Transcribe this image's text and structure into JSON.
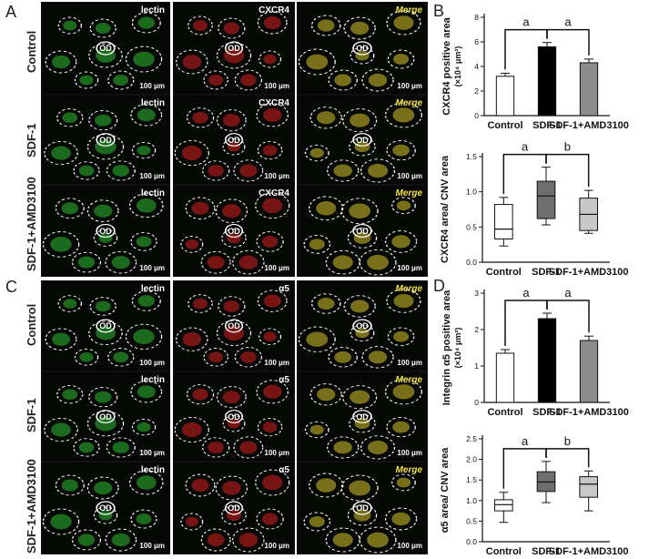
{
  "panels": {
    "A": "A",
    "B": "B",
    "C": "C",
    "D": "D"
  },
  "top_block": {
    "rows": [
      "Control",
      "SDF-1",
      "SDF-1+AMD3100"
    ],
    "channels": [
      "lectin",
      "CXCR4",
      "Merge"
    ],
    "scale_bar": "100 μm",
    "od_label": "OD"
  },
  "bottom_block": {
    "rows": [
      "Control",
      "SDF-1",
      "SDF-1+AMD3100"
    ],
    "channels": [
      "lectin",
      "α5",
      "Merge"
    ],
    "scale_bar": "100 μm",
    "od_label": "OD"
  },
  "colors": {
    "green": "#2dbb32",
    "red": "#d42121",
    "yellow": "#d6c52a",
    "bar_control": "#ffffff",
    "bar_sdf": "#000000",
    "bar_amd": "#8c8c8c",
    "box_mid": "#6e6e6e",
    "box_light": "#c8c8c8"
  },
  "chart_data": [
    {
      "id": "B1",
      "type": "bar",
      "categories": [
        "Control",
        "SDF-1",
        "SDF-1+AMD3100"
      ],
      "values": [
        3.2,
        5.6,
        4.3
      ],
      "errors": [
        0.25,
        0.35,
        0.3
      ],
      "ylabel": "CXCR4 positive area",
      "yunit": "(×10⁴ μm²)",
      "ylim": [
        0,
        8
      ],
      "yticks": [
        "0",
        "2",
        "4",
        "6",
        "8"
      ],
      "annotations": [
        "a",
        "a"
      ]
    },
    {
      "id": "B2",
      "type": "box",
      "categories": [
        "Control",
        "SDF-1",
        "SDF-1+AMD3100"
      ],
      "boxes": [
        {
          "min": 0.23,
          "q1": 0.33,
          "median": 0.47,
          "q3": 0.82,
          "max": 0.92
        },
        {
          "min": 0.53,
          "q1": 0.62,
          "median": 0.94,
          "q3": 1.15,
          "max": 1.35
        },
        {
          "min": 0.41,
          "q1": 0.45,
          "median": 0.68,
          "q3": 0.91,
          "max": 1.02
        }
      ],
      "ylabel": "CXCR4 area/ CNV area",
      "ylim": [
        0,
        1.5
      ],
      "yticks": [
        "0.0",
        "0.5",
        "1.0",
        "1.5"
      ],
      "annotations": [
        "a",
        "b"
      ]
    },
    {
      "id": "D1",
      "type": "bar",
      "categories": [
        "Control",
        "SDF-1",
        "SDF-1+AMD3100"
      ],
      "values": [
        1.35,
        2.3,
        1.7
      ],
      "errors": [
        0.1,
        0.15,
        0.12
      ],
      "ylabel": "Integrin α5 positive area",
      "yunit": "(×10⁴ μm²)",
      "ylim": [
        0,
        3
      ],
      "yticks": [
        "0",
        "1",
        "2",
        "3"
      ],
      "annotations": [
        "a",
        "a"
      ]
    },
    {
      "id": "D2",
      "type": "box",
      "categories": [
        "Control",
        "SDF-1",
        "SDF-1+AMD3100"
      ],
      "boxes": [
        {
          "min": 0.47,
          "q1": 0.75,
          "median": 0.9,
          "q3": 1.02,
          "max": 1.2
        },
        {
          "min": 0.95,
          "q1": 1.22,
          "median": 1.45,
          "q3": 1.7,
          "max": 1.95
        },
        {
          "min": 0.75,
          "q1": 1.08,
          "median": 1.4,
          "q3": 1.58,
          "max": 1.72
        }
      ],
      "ylabel": "α5 area/ CNV area",
      "ylim": [
        0,
        2.5
      ],
      "yticks": [
        "0.0",
        "0.5",
        "1.0",
        "1.5",
        "2.0",
        "2.5"
      ],
      "annotations": [
        "a",
        "b"
      ]
    }
  ]
}
